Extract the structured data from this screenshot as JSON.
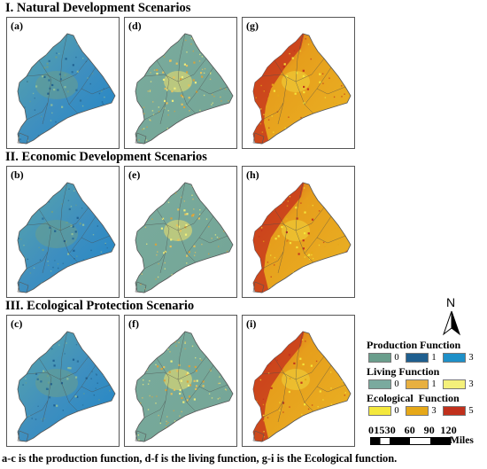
{
  "sections": [
    {
      "title": "I. Natural Development Scenarios"
    },
    {
      "title": "II. Economic Development Scenarios"
    },
    {
      "title": "III. Ecological Protection Scenario"
    }
  ],
  "panels": [
    {
      "label": "(a)",
      "function": "production"
    },
    {
      "label": "(d)",
      "function": "living"
    },
    {
      "label": "(g)",
      "function": "ecological"
    },
    {
      "label": "(b)",
      "function": "production"
    },
    {
      "label": "(e)",
      "function": "living"
    },
    {
      "label": "(h)",
      "function": "ecological"
    },
    {
      "label": "(c)",
      "function": "production"
    },
    {
      "label": "(f)",
      "function": "living"
    },
    {
      "label": "(i)",
      "function": "ecological"
    }
  ],
  "legend": {
    "production": {
      "title": "Production Function",
      "items": [
        {
          "value": "0",
          "color": "#6a9e8c"
        },
        {
          "value": "1",
          "color": "#1f5f8f"
        },
        {
          "value": "3",
          "color": "#1e90c8"
        }
      ]
    },
    "living": {
      "title": "Living Function",
      "items": [
        {
          "value": "0",
          "color": "#7aaa9e"
        },
        {
          "value": "1",
          "color": "#e8b040"
        },
        {
          "value": "3",
          "color": "#f4f07a"
        }
      ]
    },
    "ecological": {
      "title": "Ecological  Function",
      "items": [
        {
          "value": "0",
          "color": "#f4e83c"
        },
        {
          "value": "3",
          "color": "#e6a818"
        },
        {
          "value": "5",
          "color": "#c0301c"
        }
      ]
    }
  },
  "scale_bar": {
    "numbers": "01530   60   90  120",
    "unit": "Miles"
  },
  "north_arrow": {
    "label": "N"
  },
  "caption": "a-c is the production function, d-f is the living function, g-i is the Ecological function."
}
